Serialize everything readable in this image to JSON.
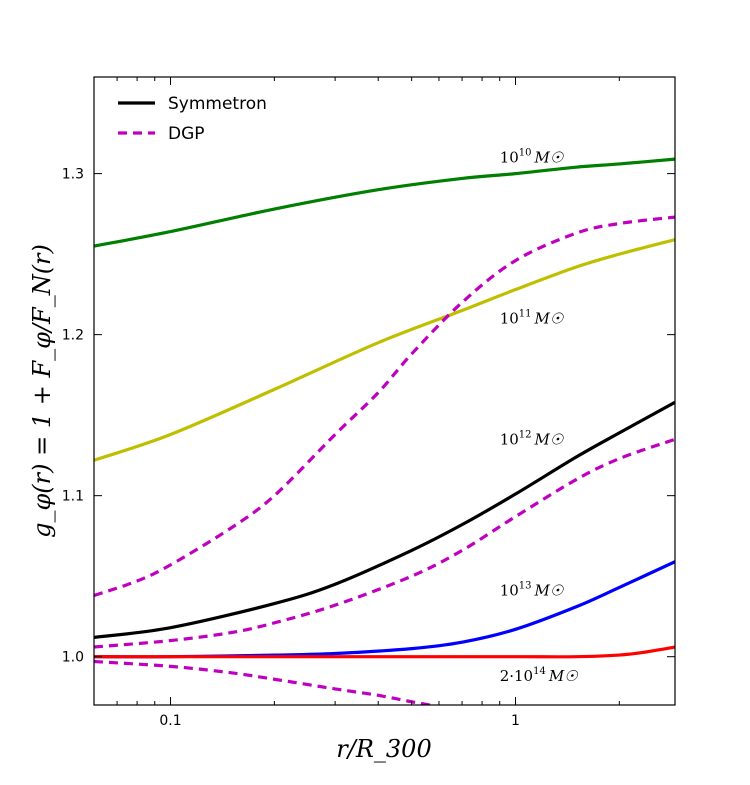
{
  "chart_data": {
    "type": "line",
    "title": "",
    "xlabel": "r/R_300",
    "ylabel": "g_φ(r) = 1 + F_φ/F_N(r)",
    "xscale": "log",
    "xlim": [
      0.06,
      2.9
    ],
    "ylim": [
      0.97,
      1.36
    ],
    "xticks": [
      {
        "value": 0.1,
        "label": "0.1"
      },
      {
        "value": 1,
        "label": "1"
      }
    ],
    "yticks": [
      {
        "value": 1.0,
        "label": "1.0"
      },
      {
        "value": 1.1,
        "label": "1.1"
      },
      {
        "value": 1.2,
        "label": "1.2"
      },
      {
        "value": 1.3,
        "label": "1.3"
      }
    ],
    "legend": {
      "position": "top-left",
      "entries": [
        {
          "label": "Symmetron",
          "color": "#000000",
          "style": "solid"
        },
        {
          "label": "DGP",
          "color": "#bf00bf",
          "style": "dashed"
        }
      ]
    },
    "annotations": [
      {
        "base": "10",
        "exp": "10",
        "suffix": "M☉",
        "x": 0.9,
        "y": 1.31
      },
      {
        "base": "10",
        "exp": "11",
        "suffix": "M☉",
        "x": 0.9,
        "y": 1.21
      },
      {
        "base": "10",
        "exp": "12",
        "suffix": "M☉",
        "x": 0.9,
        "y": 1.135
      },
      {
        "base": "10",
        "exp": "13",
        "suffix": "M☉",
        "x": 0.9,
        "y": 1.041
      },
      {
        "base": "2·10",
        "exp": "14",
        "suffix": "M☉",
        "x": 0.9,
        "y": 0.988
      }
    ],
    "series": [
      {
        "name": "Symmetron 10^10 M☉",
        "model": "Symmetron",
        "color": "#007f00",
        "style": "solid",
        "x": [
          0.06,
          0.1,
          0.2,
          0.4,
          0.7,
          1.0,
          1.5,
          2.0,
          2.9
        ],
        "y": [
          1.255,
          1.264,
          1.278,
          1.29,
          1.297,
          1.3,
          1.304,
          1.306,
          1.309
        ]
      },
      {
        "name": "Symmetron 10^11 M☉",
        "model": "Symmetron",
        "color": "#bfbf00",
        "style": "solid",
        "x": [
          0.06,
          0.1,
          0.2,
          0.4,
          0.7,
          1.0,
          1.5,
          2.0,
          2.9
        ],
        "y": [
          1.122,
          1.138,
          1.166,
          1.195,
          1.215,
          1.228,
          1.242,
          1.25,
          1.259
        ]
      },
      {
        "name": "Symmetron 10^12 M☉",
        "model": "Symmetron",
        "color": "#000000",
        "style": "solid",
        "x": [
          0.06,
          0.1,
          0.2,
          0.3,
          0.5,
          0.7,
          1.0,
          1.5,
          2.0,
          2.9
        ],
        "y": [
          1.012,
          1.018,
          1.033,
          1.045,
          1.066,
          1.082,
          1.101,
          1.124,
          1.139,
          1.158
        ]
      },
      {
        "name": "Symmetron 10^13 M☉",
        "model": "Symmetron",
        "color": "#0000ff",
        "style": "solid",
        "x": [
          0.06,
          0.1,
          0.2,
          0.3,
          0.5,
          0.7,
          1.0,
          1.5,
          2.0,
          2.9
        ],
        "y": [
          1.0,
          1.0,
          1.001,
          1.002,
          1.005,
          1.009,
          1.017,
          1.031,
          1.043,
          1.059
        ]
      },
      {
        "name": "Symmetron 2·10^14 M☉",
        "model": "Symmetron",
        "color": "#ff0000",
        "style": "solid",
        "x": [
          0.06,
          0.2,
          0.5,
          1.0,
          1.5,
          2.0,
          2.4,
          2.9
        ],
        "y": [
          1.0,
          1.0,
          1.0,
          1.0,
          1.0,
          1.001,
          1.003,
          1.006
        ]
      },
      {
        "name": "DGP 10^11 M☉",
        "model": "DGP",
        "color": "#bf00bf",
        "style": "dashed",
        "x": [
          0.06,
          0.08,
          0.1,
          0.15,
          0.2,
          0.3,
          0.4,
          0.5,
          0.7,
          1.0,
          1.5,
          2.0,
          2.9
        ],
        "y": [
          1.038,
          1.047,
          1.057,
          1.08,
          1.1,
          1.138,
          1.164,
          1.188,
          1.22,
          1.246,
          1.263,
          1.269,
          1.273
        ]
      },
      {
        "name": "DGP 10^12 M☉",
        "model": "DGP",
        "color": "#bf00bf",
        "style": "dashed",
        "x": [
          0.06,
          0.1,
          0.15,
          0.2,
          0.3,
          0.5,
          0.7,
          1.0,
          1.5,
          2.0,
          2.9
        ],
        "y": [
          1.006,
          1.01,
          1.015,
          1.021,
          1.032,
          1.05,
          1.066,
          1.087,
          1.11,
          1.123,
          1.135
        ]
      },
      {
        "name": "DGP 10^13 M☉",
        "model": "DGP",
        "color": "#bf00bf",
        "style": "dashed",
        "x": [
          0.06,
          0.1,
          0.15,
          0.2,
          0.3,
          0.4,
          0.5,
          0.6,
          0.64
        ],
        "y": [
          0.997,
          0.994,
          0.99,
          0.986,
          0.98,
          0.976,
          0.972,
          0.969,
          0.968
        ]
      }
    ]
  }
}
